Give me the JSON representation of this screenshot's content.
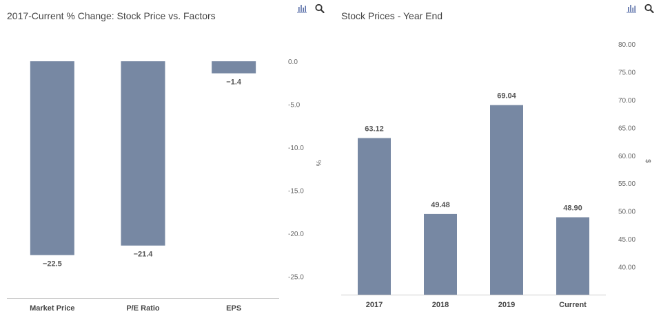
{
  "charts": [
    {
      "title": "2017-Current % Change: Stock Price vs. Factors",
      "icons": [
        "bar-chart-icon",
        "search-icon"
      ]
    },
    {
      "title": "Stock Prices - Year End",
      "icons": [
        "bar-chart-icon",
        "search-icon"
      ]
    }
  ],
  "colors": {
    "bar": "#7788a3",
    "text": "#444444",
    "axis_text": "#666666",
    "label_text": "#555555",
    "axis_line": "#cccccc",
    "icon": "#5a6fa8"
  },
  "chart_data": [
    {
      "type": "bar",
      "title": "2017-Current % Change: Stock Price vs. Factors",
      "categories": [
        "Market Price",
        "P/E Ratio",
        "EPS"
      ],
      "values": [
        -22.5,
        -21.4,
        -1.4
      ],
      "value_labels": [
        "−22.5",
        "−21.4",
        "−1.4"
      ],
      "ylabel": "%",
      "yticks": [
        0.0,
        -5.0,
        -10.0,
        -15.0,
        -20.0,
        -25.0
      ],
      "ytick_labels": [
        "0.0",
        "-5.0",
        "-10.0",
        "-15.0",
        "-20.0",
        "-25.0"
      ],
      "ylim": [
        -27.5,
        0
      ],
      "y_axis_position": "right",
      "grid": false
    },
    {
      "type": "bar",
      "title": "Stock Prices - Year End",
      "categories": [
        "2017",
        "2018",
        "2019",
        "Current"
      ],
      "values": [
        63.12,
        49.48,
        69.04,
        48.9
      ],
      "value_labels": [
        "63.12",
        "49.48",
        "69.04",
        "48.90"
      ],
      "ylabel": "$",
      "yticks": [
        40,
        45,
        50,
        55,
        60,
        65,
        70,
        75,
        80
      ],
      "ytick_labels": [
        "40.00",
        "45.00",
        "50.00",
        "55.00",
        "60.00",
        "65.00",
        "70.00",
        "75.00",
        "80.00"
      ],
      "ylim": [
        35,
        80
      ],
      "y_axis_position": "right",
      "grid": false
    }
  ]
}
